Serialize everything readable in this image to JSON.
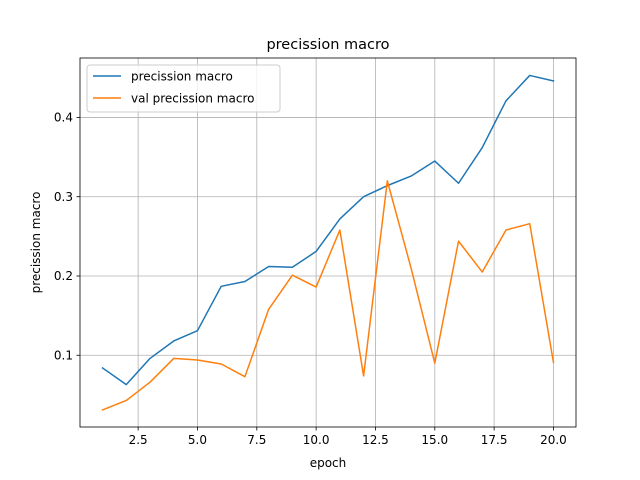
{
  "chart_data": {
    "type": "line",
    "title": "precission macro",
    "xlabel": "epoch",
    "ylabel": "precission macro",
    "xlim": [
      0.05,
      20.95
    ],
    "ylim": [
      0.0095,
      0.475
    ],
    "xticks": [
      2.5,
      5.0,
      7.5,
      10.0,
      12.5,
      15.0,
      17.5,
      20.0
    ],
    "xtick_labels": [
      "2.5",
      "5.0",
      "7.5",
      "10.0",
      "12.5",
      "15.0",
      "17.5",
      "20.0"
    ],
    "yticks": [
      0.1,
      0.2,
      0.3,
      0.4
    ],
    "ytick_labels": [
      "0.1",
      "0.2",
      "0.3",
      "0.4"
    ],
    "grid": true,
    "legend_position": "upper-left",
    "x": [
      1,
      2,
      3,
      4,
      5,
      6,
      7,
      8,
      9,
      10,
      11,
      12,
      13,
      14,
      15,
      16,
      17,
      18,
      19,
      20
    ],
    "series": [
      {
        "name": "precission macro",
        "color": "#1f77b4",
        "values": [
          0.084,
          0.063,
          0.096,
          0.118,
          0.131,
          0.187,
          0.193,
          0.212,
          0.211,
          0.231,
          0.272,
          0.3,
          0.314,
          0.326,
          0.345,
          0.317,
          0.362,
          0.421,
          0.453,
          0.446
        ]
      },
      {
        "name": "val precission macro",
        "color": "#ff7f0e",
        "values": [
          0.031,
          0.043,
          0.066,
          0.096,
          0.094,
          0.089,
          0.073,
          0.158,
          0.201,
          0.186,
          0.258,
          0.074,
          0.32,
          0.21,
          0.09,
          0.244,
          0.205,
          0.258,
          0.266,
          0.091
        ]
      }
    ]
  }
}
